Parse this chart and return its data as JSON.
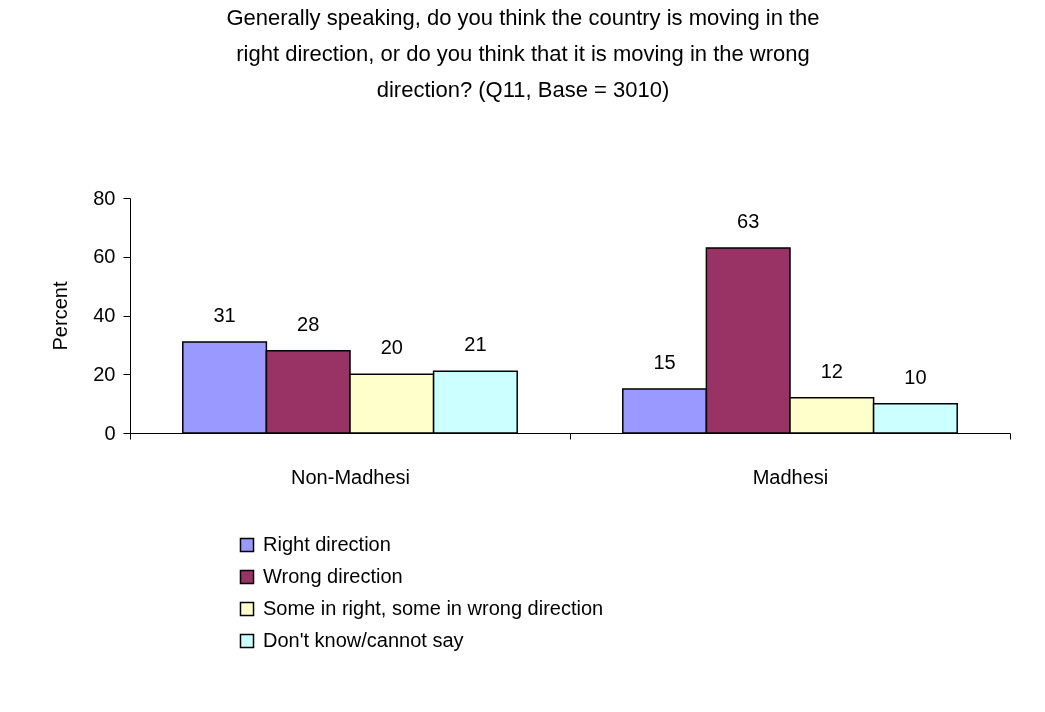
{
  "chart_data": {
    "type": "bar",
    "title": "Generally speaking, do you think the country is moving in the right direction, or do you think that it is moving in the wrong direction? (Q11, Base = 3010)",
    "ylabel": "Percent",
    "categories": [
      "Non-Madhesi",
      "Madhesi"
    ],
    "series": [
      {
        "name": "Right direction",
        "color": "#9999ff",
        "values": [
          31,
          15
        ]
      },
      {
        "name": "Wrong direction",
        "color": "#993366",
        "values": [
          28,
          63
        ]
      },
      {
        "name": "Some in right, some in wrong direction",
        "color": "#ffffcc",
        "values": [
          20,
          12
        ]
      },
      {
        "name": "Don't know/cannot say",
        "color": "#ccffff",
        "values": [
          21,
          10
        ]
      }
    ],
    "ylim": [
      0,
      80
    ],
    "yticks": [
      0,
      20,
      40,
      60,
      80
    ],
    "data_labels": true,
    "legend": "bottom"
  }
}
